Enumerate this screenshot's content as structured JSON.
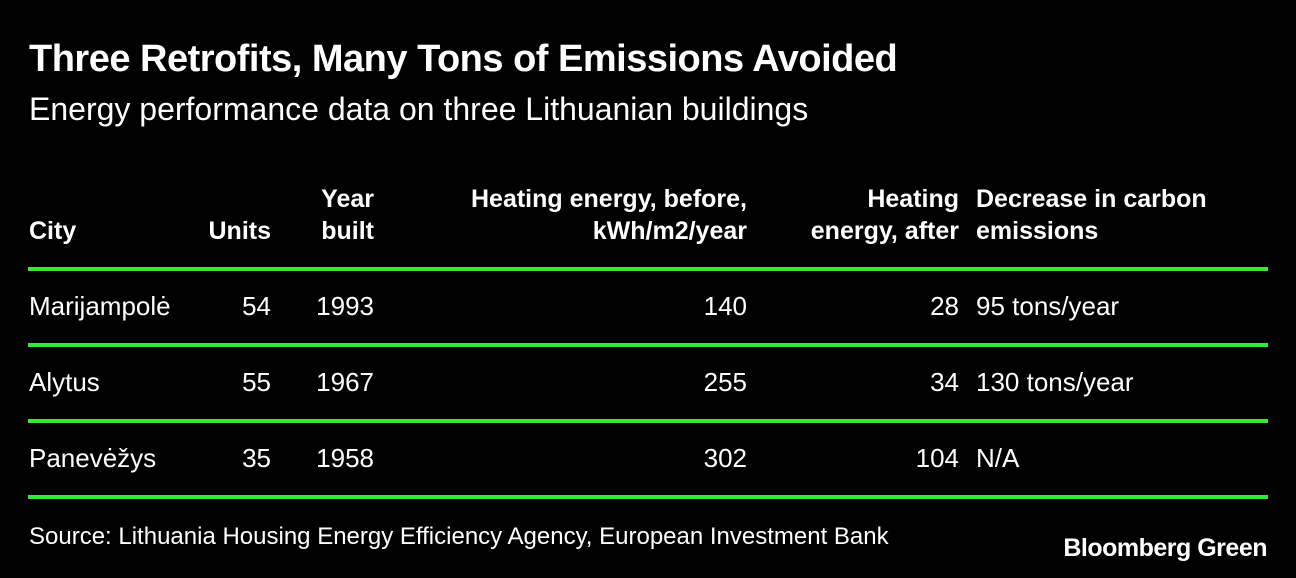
{
  "title": "Three Retrofits, Many Tons of Emissions Avoided",
  "subtitle": "Energy performance data on three Lithuanian buildings",
  "chart_data": {
    "type": "table",
    "columns": [
      {
        "line1": "",
        "line2": "City"
      },
      {
        "line1": "",
        "line2": "Units"
      },
      {
        "line1": "Year",
        "line2": "built"
      },
      {
        "line1": "Heating energy, before,",
        "line2": "kWh/m2/year"
      },
      {
        "line1": "Heating",
        "line2": "energy, after"
      },
      {
        "line1": "Decrease in carbon",
        "line2": "emissions"
      }
    ],
    "rows": [
      [
        "Marijampolė",
        "54",
        "1993",
        "140",
        "28",
        "95 tons/year"
      ],
      [
        "Alytus",
        "55",
        "1967",
        "255",
        "34",
        "130 tons/year"
      ],
      [
        "Panevėžys",
        "35",
        "1958",
        "302",
        "104",
        "N/A"
      ]
    ]
  },
  "source": "Source: Lithuania Housing Energy Efficiency Agency, European Investment Bank",
  "brand": "Bloomberg Green",
  "colors": {
    "background": "#000000",
    "text": "#ffffff",
    "rule": "#39e633"
  }
}
